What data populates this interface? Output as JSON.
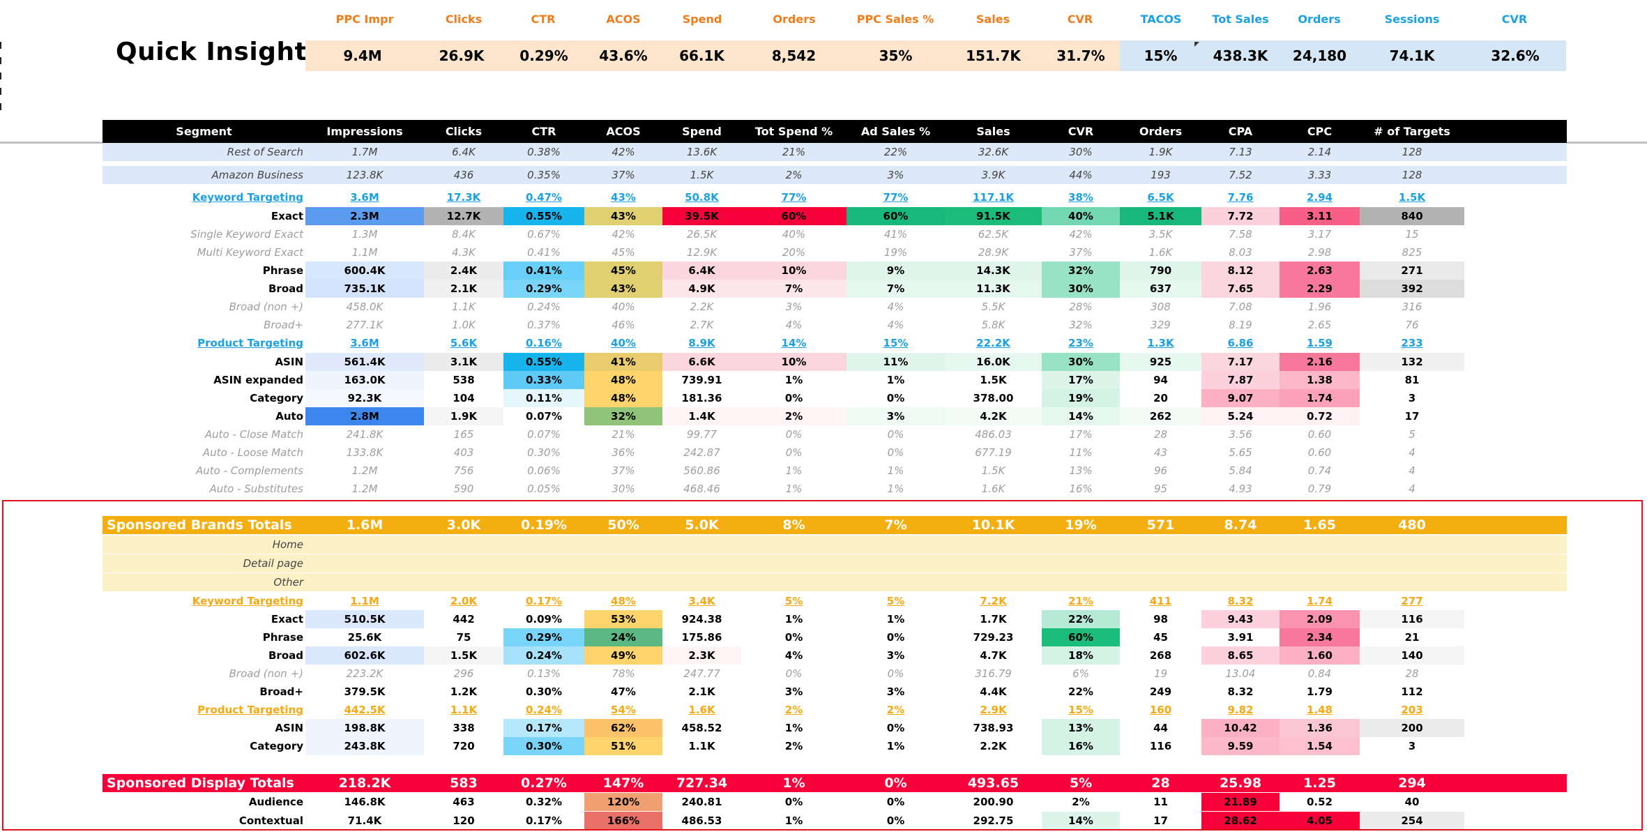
{
  "quick_insights": {
    "title": "Quick Insights",
    "headers": [
      "PPC Impr",
      "Clicks",
      "CTR",
      "ACOS",
      "Spend",
      "Orders",
      "PPC Sales %",
      "Sales",
      "CVR",
      "TACOS",
      "Tot Sales",
      "Orders",
      "Sessions",
      "CVR"
    ],
    "values": [
      "9.4M",
      "26.9K",
      "0.29%",
      "43.6%",
      "66.1K",
      "8,542",
      "35%",
      "151.7K",
      "31.7%",
      "15%",
      "438.3K",
      "24,180",
      "74.1K",
      "32.6%"
    ],
    "header_colors": [
      "#f07d1a",
      "#f07d1a",
      "#f07d1a",
      "#f07d1a",
      "#f07d1a",
      "#f07d1a",
      "#f07d1a",
      "#f07d1a",
      "#f07d1a",
      "#1ba1e2",
      "#1ba1e2",
      "#1ba1e2",
      "#1ba1e2",
      "#1ba1e2"
    ],
    "value_bg": [
      "#fce4cd",
      "#fce4cd",
      "#fce4cd",
      "#fce4cd",
      "#fce4cd",
      "#fce4cd",
      "#fce4cd",
      "#fce4cd",
      "#fce4cd",
      "#d5e6f4",
      "#d5e6f4",
      "#d5e6f4",
      "#d5e6f4",
      "#d5e6f4"
    ]
  },
  "table": {
    "headers": [
      "Segment",
      "Impressions",
      "Clicks",
      "CTR",
      "ACOS",
      "Spend",
      "Tot Spend %",
      "Ad Sales %",
      "Sales",
      "CVR",
      "Orders",
      "CPA",
      "CPC",
      "# of Targets"
    ],
    "rows": [
      {
        "style": "it",
        "bg": "#dde8f8",
        "cells": [
          "Rest of Search",
          "1.7M",
          "6.4K",
          "0.38%",
          "42%",
          "13.6K",
          "21%",
          "22%",
          "32.6K",
          "30%",
          "1.9K",
          "7.13",
          "2.14",
          "128"
        ]
      },
      {
        "style": "it",
        "bg": "#dde8f8",
        "cells": [
          "Amazon Business",
          "123.8K",
          "436",
          "0.35%",
          "37%",
          "1.5K",
          "2%",
          "3%",
          "3.9K",
          "44%",
          "193",
          "7.52",
          "3.33",
          "128"
        ]
      },
      {
        "style": "link blue",
        "cells": [
          "Keyword Targeting",
          "3.6M",
          "17.3K",
          "0.47%",
          "43%",
          "50.8K",
          "77%",
          "77%",
          "117.1K",
          "38%",
          "6.5K",
          "7.76",
          "2.94",
          "1.5K"
        ]
      },
      {
        "style": "bold",
        "fills": [
          "",
          "#5b9cf0",
          "#b3b3b3",
          "#18b4ee",
          "#e0d072",
          "#f8003a",
          "#f8003a",
          "#18b87c",
          "#1cbc7a",
          "#74d7b4",
          "#18b87c",
          "#fcd0dc",
          "#f75f86",
          "#b3b3b3"
        ],
        "cells": [
          "Exact",
          "2.3M",
          "12.7K",
          "0.55%",
          "43%",
          "39.5K",
          "60%",
          "60%",
          "91.5K",
          "40%",
          "5.1K",
          "7.72",
          "3.11",
          "840"
        ]
      },
      {
        "style": "dim",
        "cells": [
          "Single Keyword Exact",
          "1.3M",
          "8.4K",
          "0.67%",
          "42%",
          "26.5K",
          "40%",
          "41%",
          "62.5K",
          "42%",
          "3.5K",
          "7.58",
          "3.17",
          "15"
        ]
      },
      {
        "style": "dim",
        "cells": [
          "Multi Keyword Exact",
          "1.1M",
          "4.3K",
          "0.41%",
          "45%",
          "12.9K",
          "20%",
          "19%",
          "28.9K",
          "37%",
          "1.6K",
          "8.03",
          "2.98",
          "825"
        ]
      },
      {
        "style": "bold",
        "fills": [
          "",
          "#d6e6fc",
          "#ececec",
          "#68d0f8",
          "#e0d072",
          "#fcd6de",
          "#fcd6de",
          "#dff5ec",
          "#dff5ec",
          "#98e2c6",
          "#dff5ec",
          "#fcd6de",
          "#f7789a",
          "#e9e9e9"
        ],
        "cells": [
          "Phrase",
          "600.4K",
          "2.4K",
          "0.41%",
          "45%",
          "6.4K",
          "10%",
          "9%",
          "14.3K",
          "32%",
          "790",
          "8.12",
          "2.63",
          "271"
        ]
      },
      {
        "style": "bold",
        "fills": [
          "",
          "#d2e4fc",
          "#f0f0f0",
          "#7ad6f8",
          "#e0d072",
          "#fce6ea",
          "#fce6ea",
          "#e6f7f0",
          "#e6f7f0",
          "#98e2c6",
          "#e6f7f0",
          "#fcd6de",
          "#f7789a",
          "#dcdcdc"
        ],
        "cells": [
          "Broad",
          "735.1K",
          "2.1K",
          "0.29%",
          "43%",
          "4.9K",
          "7%",
          "7%",
          "11.3K",
          "30%",
          "637",
          "7.65",
          "2.29",
          "392"
        ]
      },
      {
        "style": "dim",
        "cells": [
          "Broad (non +)",
          "458.0K",
          "1.1K",
          "0.24%",
          "40%",
          "2.2K",
          "3%",
          "4%",
          "5.5K",
          "28%",
          "308",
          "7.08",
          "1.96",
          "316"
        ]
      },
      {
        "style": "dim",
        "cells": [
          "Broad+",
          "277.1K",
          "1.0K",
          "0.37%",
          "46%",
          "2.7K",
          "4%",
          "4%",
          "5.8K",
          "32%",
          "329",
          "8.19",
          "2.65",
          "76"
        ]
      },
      {
        "style": "link blue",
        "cells": [
          "Product Targeting",
          "3.6M",
          "5.6K",
          "0.16%",
          "40%",
          "8.9K",
          "14%",
          "15%",
          "22.2K",
          "23%",
          "1.3K",
          "6.86",
          "1.59",
          "233"
        ]
      },
      {
        "style": "bold",
        "fills": [
          "",
          "#dfe9fb",
          "#ececec",
          "#18b4ee",
          "#e8cc6e",
          "#fcd6de",
          "#fcd6de",
          "#dff5ec",
          "#e6f7f0",
          "#98e2c6",
          "#e6f7f0",
          "#fcd6de",
          "#f7789a",
          "#f0f0f0"
        ],
        "cells": [
          "ASIN",
          "561.4K",
          "3.1K",
          "0.55%",
          "41%",
          "6.6K",
          "10%",
          "11%",
          "16.0K",
          "30%",
          "925",
          "7.17",
          "2.16",
          "132"
        ]
      },
      {
        "style": "bold",
        "fills": [
          "",
          "#f0f5fd",
          "",
          "#5fcaf5",
          "#fcd46b",
          "",
          "",
          "",
          "",
          "#dcf4ea",
          "",
          "#fcd0dc",
          "#fcb8c8",
          ""
        ],
        "cells": [
          "ASIN expanded",
          "163.0K",
          "538",
          "0.33%",
          "48%",
          "739.91",
          "1%",
          "1%",
          "1.5K",
          "17%",
          "94",
          "7.87",
          "1.38",
          "81"
        ]
      },
      {
        "style": "bold",
        "fills": [
          "",
          "#f5f8fd",
          "",
          "#e6f6fd",
          "#fcd46b",
          "",
          "",
          "",
          "",
          "#d5f2e6",
          "",
          "#fcb0c2",
          "#fca3ba",
          ""
        ],
        "cells": [
          "Category",
          "92.3K",
          "104",
          "0.11%",
          "48%",
          "181.36",
          "0%",
          "0%",
          "378.00",
          "19%",
          "20",
          "9.07",
          "1.74",
          "3"
        ]
      },
      {
        "style": "bold",
        "fills": [
          "",
          "#3d86ee",
          "#f5f5f5",
          "",
          "#8fc47a",
          "#fff4f6",
          "#fff4f6",
          "#f0faf5",
          "#f3fbf7",
          "#e6f7f0",
          "#f3fbf7",
          "#fff1f4",
          "#fff1f4",
          ""
        ],
        "cells": [
          "Auto",
          "2.8M",
          "1.9K",
          "0.07%",
          "32%",
          "1.4K",
          "2%",
          "3%",
          "4.2K",
          "14%",
          "262",
          "5.24",
          "0.72",
          "17"
        ]
      },
      {
        "style": "dim",
        "cells": [
          "Auto - Close Match",
          "241.8K",
          "165",
          "0.07%",
          "21%",
          "99.77",
          "0%",
          "0%",
          "486.03",
          "17%",
          "28",
          "3.56",
          "0.60",
          "5"
        ]
      },
      {
        "style": "dim",
        "cells": [
          "Auto - Loose Match",
          "133.8K",
          "403",
          "0.30%",
          "36%",
          "242.87",
          "0%",
          "0%",
          "677.19",
          "11%",
          "43",
          "5.65",
          "0.60",
          "4"
        ]
      },
      {
        "style": "dim",
        "cells": [
          "Auto - Complements",
          "1.2M",
          "756",
          "0.06%",
          "37%",
          "560.86",
          "1%",
          "1%",
          "1.5K",
          "13%",
          "96",
          "5.84",
          "0.74",
          "4"
        ]
      },
      {
        "style": "dim",
        "cells": [
          "Auto - Substitutes",
          "1.2M",
          "590",
          "0.05%",
          "30%",
          "468.46",
          "1%",
          "1%",
          "1.6K",
          "16%",
          "95",
          "4.93",
          "0.79",
          "4"
        ]
      }
    ],
    "sb_rows": [
      {
        "style": "tot",
        "bg": "#f5ae10",
        "cells": [
          "Sponsored Brands Totals",
          "1.6M",
          "3.0K",
          "0.19%",
          "50%",
          "5.0K",
          "8%",
          "7%",
          "10.1K",
          "19%",
          "571",
          "8.74",
          "1.65",
          "480"
        ]
      },
      {
        "style": "it",
        "bg": "#fcf0c6",
        "cells": [
          "Home",
          "",
          "",
          "",
          "",
          "",
          "",
          "",
          "",
          "",
          "",
          "",
          "",
          ""
        ]
      },
      {
        "style": "it",
        "bg": "#fcf0c6",
        "cells": [
          "Detail page",
          "",
          "",
          "",
          "",
          "",
          "",
          "",
          "",
          "",
          "",
          "",
          "",
          ""
        ]
      },
      {
        "style": "it",
        "bg": "#fcf0c6",
        "cells": [
          "Other",
          "",
          "",
          "",
          "",
          "",
          "",
          "",
          "",
          "",
          "",
          "",
          "",
          ""
        ]
      },
      {
        "style": "link gold",
        "cells": [
          "Keyword Targeting",
          "1.1M",
          "2.0K",
          "0.17%",
          "48%",
          "3.4K",
          "5%",
          "5%",
          "7.2K",
          "21%",
          "411",
          "8.32",
          "1.74",
          "277"
        ]
      },
      {
        "style": "bold",
        "fills": [
          "",
          "#dbe7fc",
          "",
          "",
          "#fcd46b",
          "",
          "",
          "",
          "",
          "#b6e9d6",
          "",
          "#fcd0dc",
          "#f993ae",
          "#f5f5f5"
        ],
        "cells": [
          "Exact",
          "510.5K",
          "442",
          "0.09%",
          "53%",
          "924.38",
          "1%",
          "1%",
          "1.7K",
          "22%",
          "98",
          "9.43",
          "2.09",
          "116"
        ]
      },
      {
        "style": "bold",
        "fills": [
          "",
          "",
          "",
          "#78d4f8",
          "#5bb883",
          "",
          "",
          "",
          "",
          "#1cbc7a",
          "",
          "",
          "#f7789a",
          ""
        ],
        "cells": [
          "Phrase",
          "25.6K",
          "75",
          "0.29%",
          "24%",
          "175.86",
          "0%",
          "0%",
          "729.23",
          "60%",
          "45",
          "3.91",
          "2.34",
          "21"
        ]
      },
      {
        "style": "bold",
        "fills": [
          "",
          "#dbe7fc",
          "#f5f5f5",
          "#a6e2fa",
          "#fcd46b",
          "#fff4f6",
          "",
          "",
          "",
          "#d5f2e6",
          "",
          "#fcd0dc",
          "#fcb0c2",
          "#f5f5f5"
        ],
        "cells": [
          "Broad",
          "602.6K",
          "1.5K",
          "0.24%",
          "49%",
          "2.3K",
          "4%",
          "3%",
          "4.7K",
          "18%",
          "268",
          "8.65",
          "1.60",
          "140"
        ]
      },
      {
        "style": "dim",
        "cells": [
          "Broad (non +)",
          "223.2K",
          "296",
          "0.13%",
          "78%",
          "247.77",
          "0%",
          "0%",
          "316.79",
          "6%",
          "19",
          "13.04",
          "0.84",
          "28"
        ]
      },
      {
        "style": "bold",
        "cells": [
          "Broad+",
          "379.5K",
          "1.2K",
          "0.30%",
          "47%",
          "2.1K",
          "3%",
          "3%",
          "4.4K",
          "22%",
          "249",
          "8.32",
          "1.79",
          "112"
        ]
      },
      {
        "style": "link gold",
        "cells": [
          "Product Targeting",
          "442.5K",
          "1.1K",
          "0.24%",
          "54%",
          "1.6K",
          "2%",
          "2%",
          "2.9K",
          "15%",
          "160",
          "9.82",
          "1.48",
          "203"
        ]
      },
      {
        "style": "bold",
        "fills": [
          "",
          "#f0f5fd",
          "",
          "#b6e8fb",
          "#fcc26a",
          "",
          "",
          "",
          "",
          "#d5f2e6",
          "",
          "#fcb0c2",
          "#fcc7d4",
          "#ececec"
        ],
        "cells": [
          "ASIN",
          "198.8K",
          "338",
          "0.17%",
          "62%",
          "458.52",
          "1%",
          "0%",
          "738.93",
          "13%",
          "44",
          "10.42",
          "1.36",
          "200"
        ]
      },
      {
        "style": "bold",
        "fills": [
          "",
          "#f0f5fd",
          "",
          "#78d4f8",
          "#fcd46b",
          "",
          "",
          "",
          "",
          "#d5f2e6",
          "",
          "#fcb8c8",
          "#fcc0cf",
          ""
        ],
        "cells": [
          "Category",
          "243.8K",
          "720",
          "0.30%",
          "51%",
          "1.1K",
          "2%",
          "1%",
          "2.2K",
          "16%",
          "116",
          "9.59",
          "1.54",
          "3"
        ]
      }
    ],
    "sd_rows": [
      {
        "style": "tot",
        "bg": "#f8003a",
        "cells": [
          "Sponsored Display Totals",
          "218.2K",
          "583",
          "0.27%",
          "147%",
          "727.34",
          "1%",
          "0%",
          "493.65",
          "5%",
          "28",
          "25.98",
          "1.25",
          "294"
        ]
      },
      {
        "style": "bold",
        "fills": [
          "",
          "",
          "",
          "",
          "#f0a070",
          "",
          "",
          "",
          "",
          "",
          "",
          "#f8003a",
          "",
          ""
        ],
        "cells": [
          "Audience",
          "146.8K",
          "463",
          "0.32%",
          "120%",
          "240.81",
          "0%",
          "0%",
          "200.90",
          "2%",
          "11",
          "21.89",
          "0.52",
          "40"
        ]
      },
      {
        "style": "bold",
        "fills": [
          "",
          "",
          "",
          "",
          "#e87066",
          "",
          "",
          "",
          "",
          "#dcf4ea",
          "",
          "#f8003a",
          "#f8003a",
          "#ececec"
        ],
        "cells": [
          "Contextual",
          "71.4K",
          "120",
          "0.17%",
          "166%",
          "486.53",
          "1%",
          "0%",
          "292.75",
          "14%",
          "17",
          "28.62",
          "4.05",
          "254"
        ]
      }
    ]
  }
}
